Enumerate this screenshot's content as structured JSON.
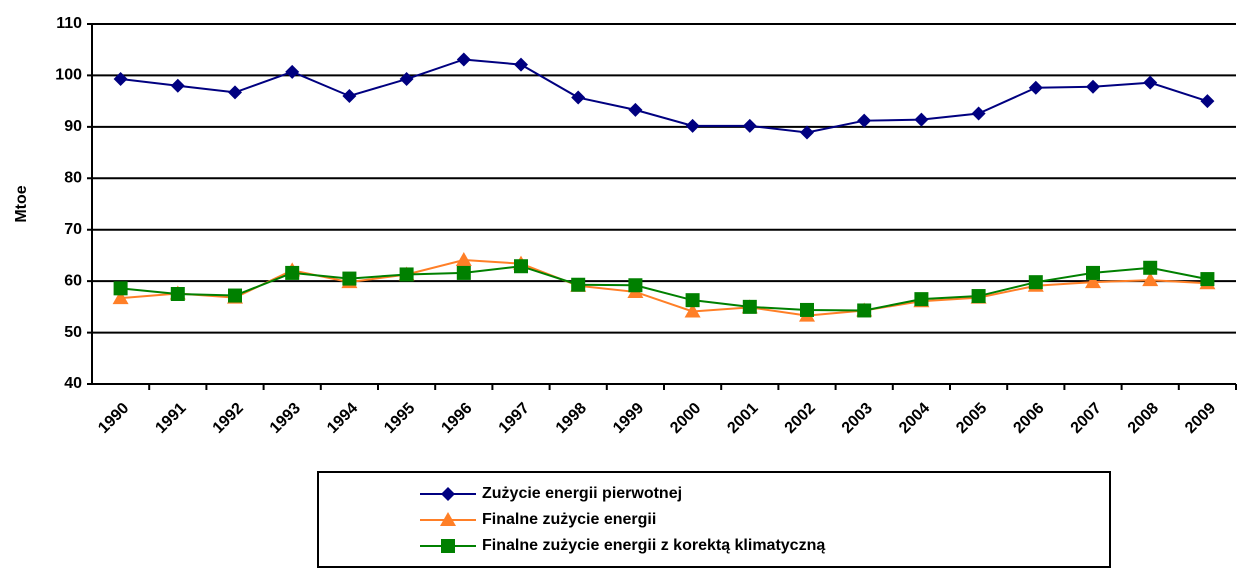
{
  "chart_data": {
    "type": "line",
    "y_label": "Mtoe",
    "categories": [
      "1990",
      "1991",
      "1992",
      "1993",
      "1994",
      "1995",
      "1996",
      "1997",
      "1998",
      "1999",
      "2000",
      "2001",
      "2002",
      "2003",
      "2004",
      "2005",
      "2006",
      "2007",
      "2008",
      "2009"
    ],
    "series": [
      {
        "name": "Zużycie energii pierwotnej",
        "color": "#000080",
        "marker": "diamond",
        "values": [
          99.3,
          98,
          96.7,
          100.7,
          96,
          99.3,
          103.1,
          102.1,
          95.7,
          93.3,
          90.2,
          90.2,
          88.9,
          91.2,
          91.4,
          92.6,
          97.6,
          97.8,
          98.6,
          95
        ]
      },
      {
        "name": "Finalne zużycie energii",
        "color": "#ff7f27",
        "marker": "triangle",
        "values": [
          56.7,
          57.6,
          56.8,
          62.1,
          59.8,
          61.3,
          64.1,
          63.4,
          59.1,
          57.9,
          54.1,
          54.9,
          53.3,
          54.3,
          56.1,
          56.8,
          59.1,
          59.8,
          60.2,
          59.6
        ]
      },
      {
        "name": "Finalne zużycie energii z korektą klimatyczną",
        "color": "#008000",
        "marker": "square",
        "values": [
          58.6,
          57.5,
          57.2,
          61.6,
          60.5,
          61.3,
          61.6,
          62.9,
          59.3,
          59.2,
          56.3,
          55,
          54.4,
          54.3,
          56.5,
          57.1,
          59.8,
          61.6,
          62.6,
          60.4
        ]
      }
    ],
    "ylim": [
      40,
      110
    ],
    "yticks": [
      40,
      50,
      60,
      70,
      80,
      90,
      100,
      110
    ],
    "grid": true,
    "legend": "bottom"
  }
}
